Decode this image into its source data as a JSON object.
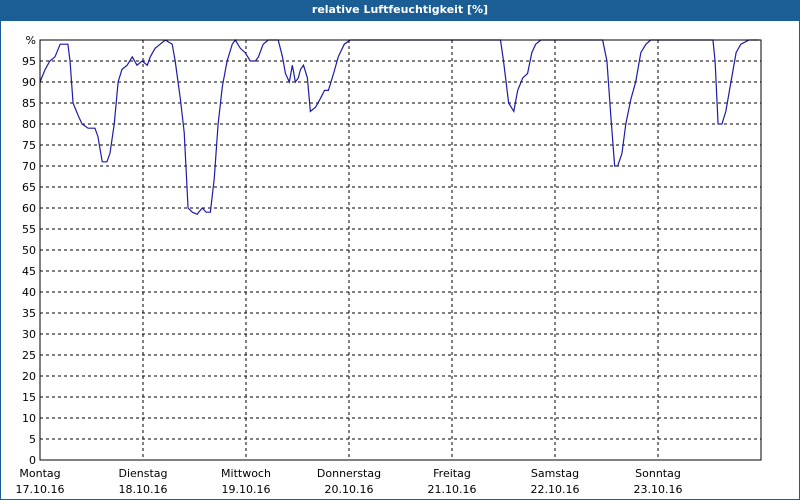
{
  "chart_data": {
    "type": "line",
    "title": "relative Luftfeuchtigkeit [%]",
    "x": [
      0,
      1.2,
      2.3,
      3.5,
      4.7,
      5.8,
      6.5,
      7,
      7.7,
      8.9,
      9.8,
      11.2,
      12.8,
      13.5,
      14.5,
      15.6,
      16.3,
      17.3,
      18.2,
      19.1,
      20.3,
      21.5,
      22.6,
      23.8,
      25,
      25.7,
      26.8,
      28,
      29.2,
      30.8,
      31.5,
      32.7,
      33.6,
      34.5,
      35.5,
      36.6,
      37.8,
      38.7,
      39.7,
      40.6,
      41.5,
      42.5,
      43.6,
      44.8,
      45.5,
      46.7,
      47.8,
      49,
      50.2,
      50.9,
      52,
      53.2,
      54.1,
      55.5,
      56.5,
      57.2,
      58.1,
      58.8,
      59.5,
      60.2,
      60.7,
      61.4,
      62.3,
      63,
      64.2,
      65.3,
      66.3,
      67.2,
      68.4,
      69.5,
      70.9,
      72.3,
      74.2,
      84,
      95.7,
      107.3,
      108,
      109.2,
      110.4,
      111.3,
      112.5,
      113.6,
      114.6,
      115.5,
      116.7,
      123.7,
      131.1,
      132.1,
      133,
      133.9,
      134.6,
      135.6,
      136.5,
      137.7,
      138.8,
      140,
      141.2,
      142.3,
      146.5,
      151.7,
      156.8,
      157.3,
      158,
      158.9,
      159.8,
      161,
      162.2,
      163.3,
      165.2,
      167.5
    ],
    "series": [
      {
        "name": "relative Luftfeuchtigkeit",
        "color": "#1c1ca8",
        "values": [
          90,
          93,
          95,
          96,
          99,
          99,
          99,
          95,
          85,
          82,
          80,
          79,
          79,
          77,
          71,
          71,
          73,
          80,
          90,
          93,
          94,
          96,
          94,
          95,
          94,
          96,
          98,
          99,
          100,
          99,
          95,
          86,
          78,
          60,
          59,
          58.5,
          60,
          59,
          59,
          67,
          80,
          89,
          95,
          99,
          100,
          98,
          97,
          95,
          95,
          96,
          99,
          100,
          100,
          100,
          96,
          92,
          90,
          94,
          90,
          91,
          93,
          94,
          91,
          83,
          84,
          86,
          88,
          88,
          92,
          96,
          99,
          100,
          100,
          100,
          100,
          100,
          95,
          85,
          83,
          88,
          91,
          92,
          97,
          99,
          100,
          100,
          100,
          95,
          82,
          70,
          70,
          73,
          80,
          86,
          90,
          97,
          99,
          100,
          100,
          100,
          100,
          95,
          80,
          80,
          83,
          90,
          97,
          99,
          100,
          100
        ]
      }
    ],
    "xlim": [
      0,
      168
    ],
    "xticks": [
      {
        "value": 0,
        "label": "Montag"
      },
      {
        "value": 24,
        "label": "Dienstag"
      },
      {
        "value": 48,
        "label": "Mittwoch"
      },
      {
        "value": 72,
        "label": "Donnerstag"
      },
      {
        "value": 96,
        "label": "Freitag"
      },
      {
        "value": 120,
        "label": "Samstag"
      },
      {
        "value": 144,
        "label": "Sonntag"
      }
    ],
    "xtick_dates": [
      "17.10.16",
      "18.10.16",
      "19.10.16",
      "20.10.16",
      "21.10.16",
      "22.10.16",
      "23.10.16"
    ],
    "ylim": [
      0,
      100
    ],
    "yticks": [
      0,
      5,
      10,
      15,
      20,
      25,
      30,
      35,
      40,
      45,
      50,
      55,
      60,
      65,
      70,
      75,
      80,
      85,
      90,
      95,
      {
        "value": 100,
        "label": "%"
      }
    ],
    "grid": true
  }
}
